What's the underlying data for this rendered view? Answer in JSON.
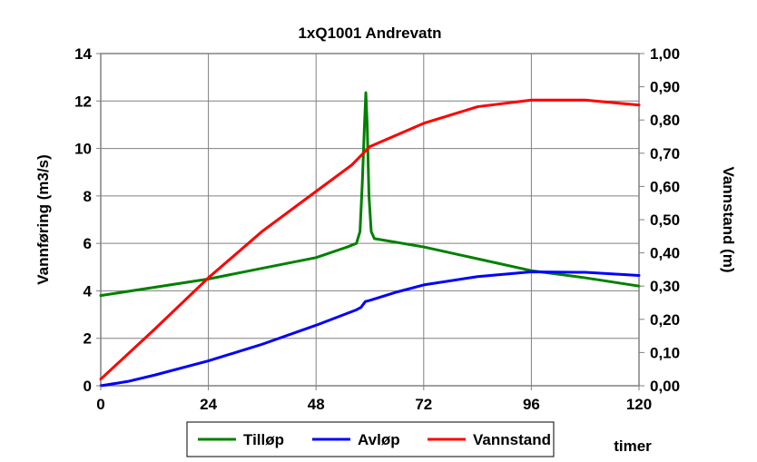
{
  "chart_data": {
    "type": "line",
    "title": "1xQ1001 Andrevatn",
    "xlabel": "timer",
    "ylabel": "Vannføring (m3/s)",
    "y2label": "Vannstand (m)",
    "xlim": [
      0,
      120
    ],
    "ylim": [
      0,
      14
    ],
    "y2lim": [
      0,
      1.0
    ],
    "x_ticks": [
      0,
      24,
      48,
      72,
      96,
      120
    ],
    "y_ticks": [
      0,
      2,
      4,
      6,
      8,
      10,
      12,
      14
    ],
    "y2_ticks": [
      "0,00",
      "0,10",
      "0,20",
      "0,30",
      "0,40",
      "0,50",
      "0,60",
      "0,70",
      "0,80",
      "0,90",
      "1,00"
    ],
    "grid": true,
    "legend_position": "bottom",
    "series": [
      {
        "name": "Tilløp",
        "axis": "left",
        "color": "#008000",
        "points": [
          [
            0,
            3.8
          ],
          [
            12,
            4.15
          ],
          [
            24,
            4.5
          ],
          [
            36,
            4.95
          ],
          [
            48,
            5.4
          ],
          [
            55,
            5.85
          ],
          [
            57,
            6.0
          ],
          [
            57.8,
            6.5
          ],
          [
            58.3,
            8.5
          ],
          [
            58.8,
            11.0
          ],
          [
            59.1,
            12.35
          ],
          [
            59.4,
            11.0
          ],
          [
            59.8,
            8.0
          ],
          [
            60.3,
            6.5
          ],
          [
            61,
            6.2
          ],
          [
            72,
            5.85
          ],
          [
            84,
            5.35
          ],
          [
            96,
            4.85
          ],
          [
            108,
            4.55
          ],
          [
            120,
            4.2
          ]
        ]
      },
      {
        "name": "Avløp",
        "axis": "left",
        "color": "#0000ff",
        "points": [
          [
            0,
            0.0
          ],
          [
            6,
            0.18
          ],
          [
            12,
            0.45
          ],
          [
            24,
            1.05
          ],
          [
            36,
            1.75
          ],
          [
            48,
            2.55
          ],
          [
            57,
            3.2
          ],
          [
            58,
            3.3
          ],
          [
            59,
            3.55
          ],
          [
            60,
            3.6
          ],
          [
            66,
            3.95
          ],
          [
            72,
            4.25
          ],
          [
            84,
            4.6
          ],
          [
            96,
            4.8
          ],
          [
            108,
            4.78
          ],
          [
            120,
            4.65
          ]
        ]
      },
      {
        "name": "Vannstand",
        "axis": "right",
        "color": "#ff0000",
        "points": [
          [
            0,
            0.02
          ],
          [
            12,
            0.17
          ],
          [
            24,
            0.325
          ],
          [
            36,
            0.465
          ],
          [
            48,
            0.585
          ],
          [
            56,
            0.665
          ],
          [
            60,
            0.72
          ],
          [
            72,
            0.79
          ],
          [
            84,
            0.84
          ],
          [
            96,
            0.86
          ],
          [
            108,
            0.86
          ],
          [
            120,
            0.845
          ]
        ]
      }
    ]
  }
}
